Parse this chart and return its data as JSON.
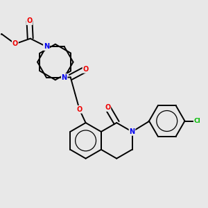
{
  "background_color": "#e8e8e8",
  "atom_colors": {
    "N": "#0000ee",
    "O": "#ee0000",
    "Cl": "#00bb00",
    "C": "#000000"
  },
  "bond_color": "#000000",
  "bond_lw": 1.4,
  "fig_width": 3.0,
  "fig_height": 3.0,
  "dpi": 100
}
